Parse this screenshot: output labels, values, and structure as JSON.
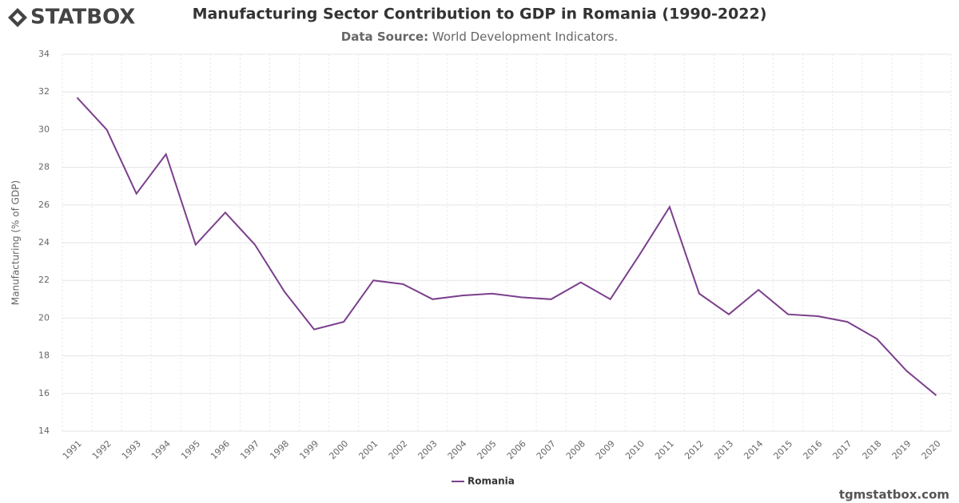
{
  "logo": "STATBOX",
  "watermark": "tgmstatbox.com",
  "chart_data": {
    "type": "line",
    "title": "Manufacturing Sector Contribution to GDP in Romania (1990-2022)",
    "subtitle_label": "Data Source:",
    "subtitle": "World Development Indicators.",
    "y_label": "Manufacturing (% of GDP)",
    "categories": [
      "1991",
      "1992",
      "1993",
      "1994",
      "1995",
      "1996",
      "1997",
      "1998",
      "1999",
      "2000",
      "2001",
      "2002",
      "2003",
      "2004",
      "2005",
      "2006",
      "2007",
      "2008",
      "2009",
      "2010",
      "2011",
      "2012",
      "2013",
      "2014",
      "2015",
      "2016",
      "2017",
      "2018",
      "2019",
      "2020"
    ],
    "series": [
      {
        "name": "Romania",
        "color": "#7b3f8c",
        "values": [
          31.7,
          30.0,
          26.6,
          28.7,
          23.9,
          25.6,
          23.9,
          21.4,
          19.4,
          19.8,
          22.0,
          21.8,
          21.0,
          21.2,
          21.3,
          21.1,
          21.0,
          21.9,
          21.0,
          23.4,
          25.9,
          21.3,
          20.2,
          21.5,
          20.2,
          20.1,
          19.8,
          18.9,
          17.2,
          15.9
        ]
      }
    ],
    "ylim": [
      14,
      34
    ],
    "yticks": [
      14,
      16,
      18,
      20,
      22,
      24,
      26,
      28,
      30,
      32,
      34
    ],
    "grid": true
  }
}
